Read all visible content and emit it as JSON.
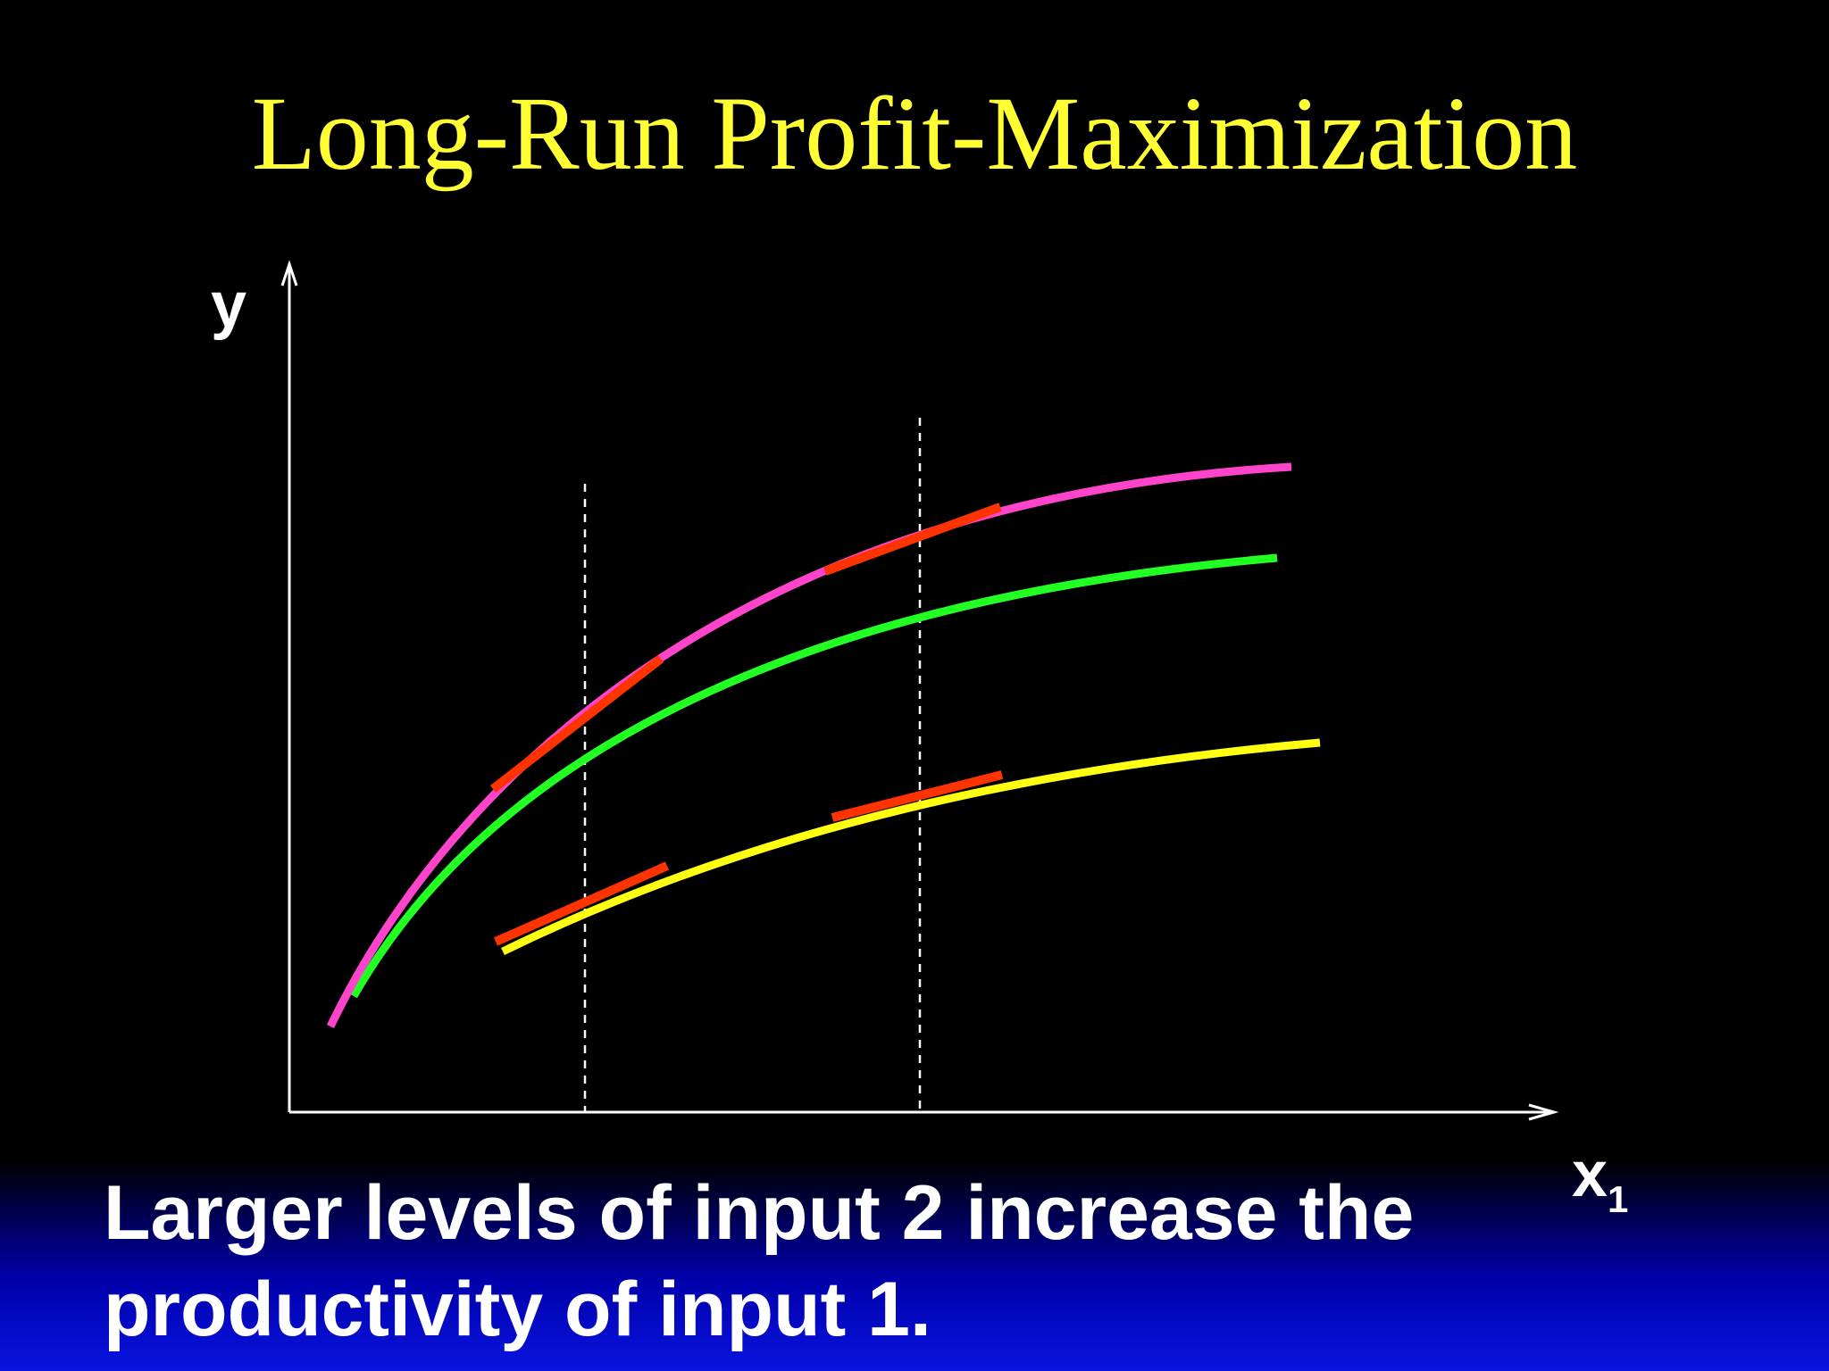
{
  "slide": {
    "title": "Long-Run Profit-Maximization",
    "caption_lines": [
      "Larger levels of input 2 increase the",
      "productivity of input 1."
    ]
  },
  "diagram": {
    "y_axis_label": "y",
    "x_axis_label": "x",
    "x_axis_subscript": "1",
    "curves": [
      {
        "id": "product-curve-high",
        "color": "#ff44cc"
      },
      {
        "id": "product-curve-mid",
        "color": "#22ff22"
      },
      {
        "id": "product-curve-low",
        "color": "#ffff11"
      }
    ],
    "tangent_color": "#ff3300",
    "axis_color": "#ffffff",
    "guide_color": "#ffffff"
  }
}
